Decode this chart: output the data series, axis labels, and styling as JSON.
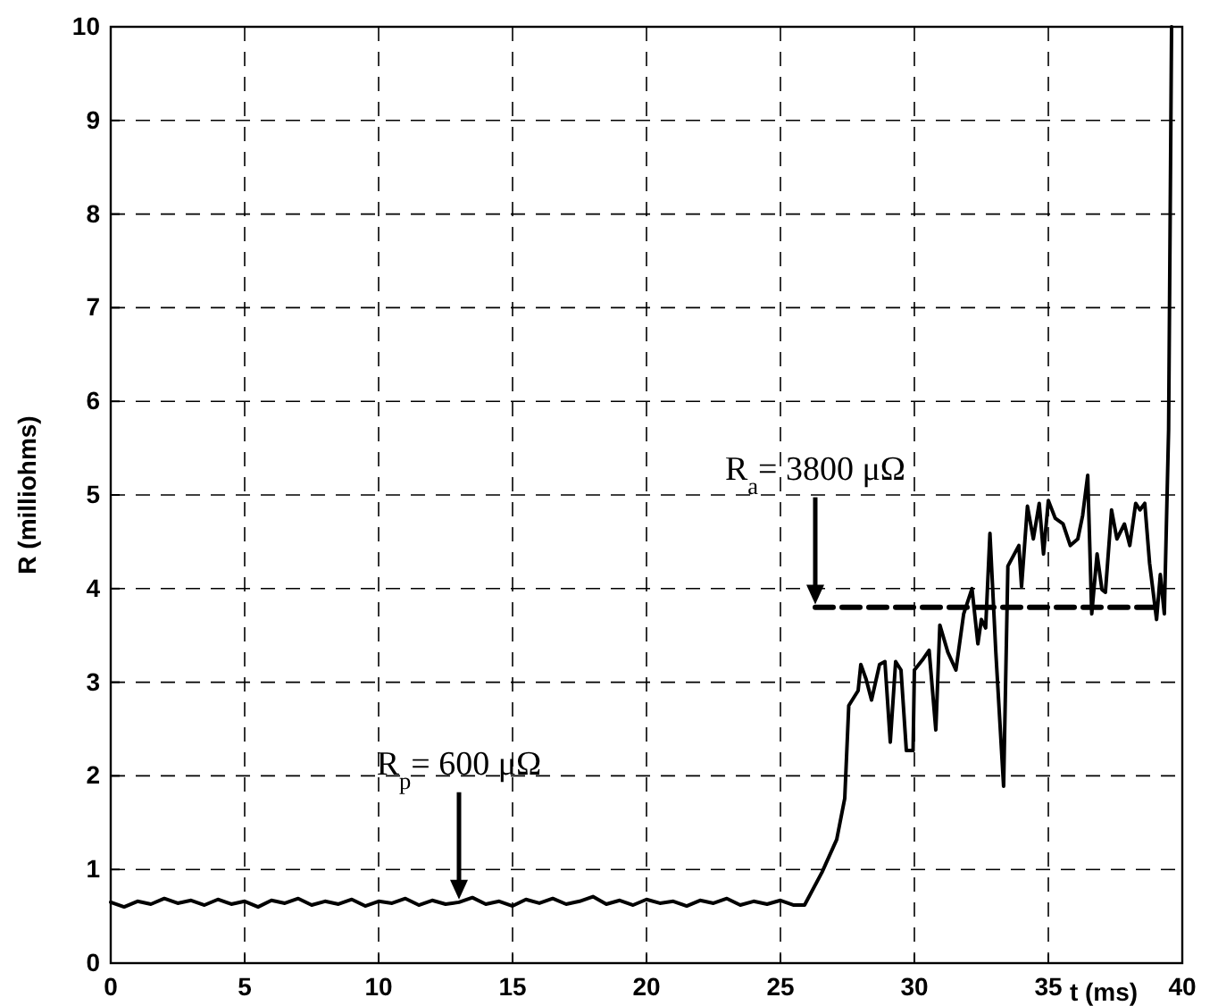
{
  "chart_data": {
    "type": "line",
    "xlabel": "t (ms)",
    "ylabel": "R (milliohms)",
    "xlim": [
      0,
      40
    ],
    "ylim": [
      0,
      10
    ],
    "xticks": [
      0,
      5,
      10,
      15,
      20,
      25,
      30,
      35,
      40
    ],
    "yticks": [
      0,
      1,
      2,
      3,
      4,
      5,
      6,
      7,
      8,
      9,
      10
    ],
    "grid": true,
    "series": [
      {
        "color": "#000000",
        "line_style": "solid",
        "x": [
          0,
          0.5,
          1,
          1.5,
          2,
          2.5,
          3,
          3.5,
          4,
          4.5,
          5,
          5.5,
          6,
          6.5,
          7,
          7.5,
          8,
          8.5,
          9,
          9.5,
          10,
          10.5,
          11,
          11.5,
          12,
          12.5,
          13,
          13.5,
          14,
          14.5,
          15,
          15.5,
          16,
          16.5,
          17,
          17.5,
          18,
          18.5,
          19,
          19.5,
          20,
          20.5,
          21,
          21.5,
          22,
          22.5,
          23,
          23.5,
          24,
          24.5,
          25,
          25.5,
          25.9,
          26.55,
          27.1,
          27.4,
          27.55,
          27.9,
          28.0,
          28.2,
          28.4,
          28.7,
          28.9,
          29.1,
          29.3,
          29.5,
          29.7,
          29.95,
          30.0,
          30.33,
          30.55,
          30.8,
          30.95,
          31.25,
          31.55,
          31.84,
          32.15,
          32.37,
          32.5,
          32.66,
          32.82,
          33.04,
          33.33,
          33.49,
          33.9,
          34.0,
          34.22,
          34.44,
          34.66,
          34.82,
          35.0,
          35.26,
          35.55,
          35.82,
          36.1,
          36.28,
          36.47,
          36.62,
          36.82,
          37.0,
          37.13,
          37.36,
          37.56,
          37.84,
          38.04,
          38.26,
          38.42,
          38.6,
          38.78,
          39.04,
          39.18,
          39.33,
          39.49,
          39.6
        ],
        "values": [
          0.65,
          0.6,
          0.66,
          0.63,
          0.69,
          0.64,
          0.67,
          0.62,
          0.68,
          0.63,
          0.66,
          0.6,
          0.67,
          0.64,
          0.69,
          0.62,
          0.66,
          0.63,
          0.68,
          0.61,
          0.66,
          0.64,
          0.69,
          0.62,
          0.67,
          0.63,
          0.65,
          0.7,
          0.63,
          0.66,
          0.61,
          0.68,
          0.64,
          0.69,
          0.63,
          0.66,
          0.71,
          0.63,
          0.67,
          0.62,
          0.68,
          0.64,
          0.66,
          0.61,
          0.67,
          0.64,
          0.69,
          0.62,
          0.66,
          0.63,
          0.67,
          0.62,
          0.62,
          0.97,
          1.32,
          1.76,
          2.75,
          2.91,
          3.19,
          3.03,
          2.81,
          3.19,
          3.22,
          2.36,
          3.22,
          3.13,
          2.27,
          2.27,
          3.13,
          3.25,
          3.34,
          2.49,
          3.61,
          3.32,
          3.13,
          3.73,
          4.0,
          3.41,
          3.67,
          3.58,
          4.59,
          3.32,
          1.89,
          4.24,
          4.46,
          4.02,
          4.88,
          4.53,
          4.91,
          4.37,
          4.94,
          4.75,
          4.69,
          4.46,
          4.53,
          4.78,
          5.21,
          3.73,
          4.37,
          3.99,
          3.96,
          4.84,
          4.53,
          4.69,
          4.46,
          4.91,
          4.84,
          4.91,
          4.27,
          3.67,
          4.15,
          3.73,
          5.7,
          10
        ]
      },
      {
        "color": "#000000",
        "line_style": "dashed",
        "x": [
          26.3,
          39.3
        ],
        "values": [
          3.8,
          3.8
        ]
      }
    ],
    "annotations": [
      {
        "text": "R$_{p}$= 600 μΩ",
        "x": 13,
        "y": 0.68
      },
      {
        "text": "R$_{a}$= 3800 μΩ",
        "x": 26.3,
        "y": 3.83
      }
    ]
  }
}
